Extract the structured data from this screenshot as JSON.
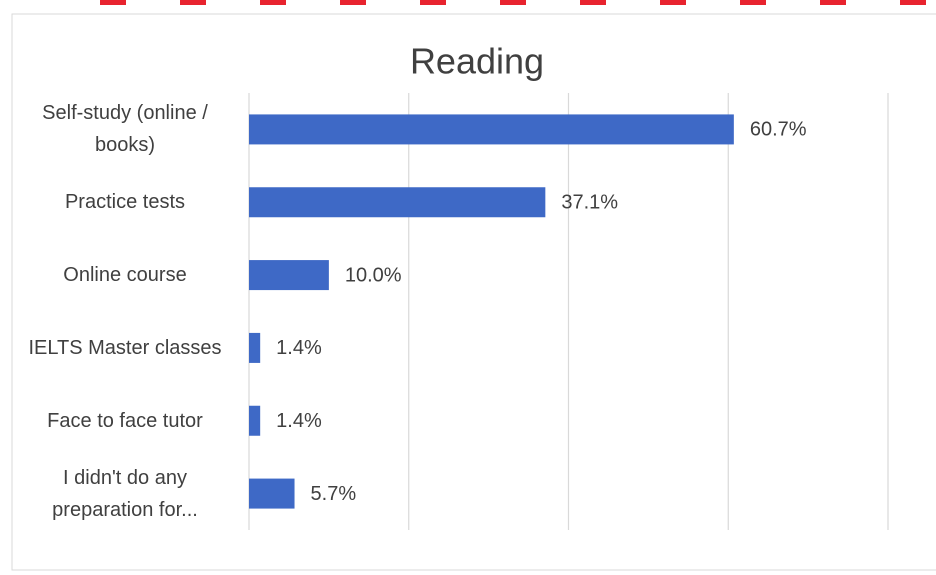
{
  "chart_data": {
    "type": "bar",
    "orientation": "horizontal",
    "title": "Reading",
    "categories": [
      "Self-study (online / books)",
      "Practice tests",
      "Online course",
      "IELTS Master classes",
      "Face to face tutor",
      "I didn't do any preparation for..."
    ],
    "values": [
      60.7,
      37.1,
      10.0,
      1.4,
      1.4,
      5.7
    ],
    "value_labels": [
      "60.7%",
      "37.1%",
      "10.0%",
      "1.4%",
      "1.4%",
      "5.7%"
    ],
    "color": "#3e69c6",
    "xlim": [
      0,
      80
    ],
    "xticks": [
      0,
      20,
      40,
      60,
      80
    ],
    "grid": true
  }
}
